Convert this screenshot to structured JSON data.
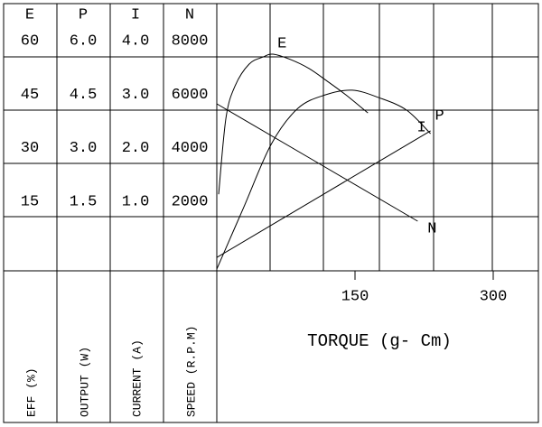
{
  "chart_data": {
    "type": "line",
    "x_label": "TORQUE (g- Cm)",
    "xlim": [
      0,
      350
    ],
    "xticks": [
      150,
      300
    ],
    "color": "#000000",
    "series": [
      {
        "name": "E",
        "axis_label": "EFF (%)",
        "ylim": [
          0,
          75
        ],
        "yticks": [
          15,
          30,
          45,
          60
        ],
        "x": [
          2,
          10,
          20,
          35,
          50,
          61,
          80,
          100,
          120,
          140,
          164
        ],
        "values": [
          21.5,
          43,
          52,
          58,
          60,
          60.8,
          59.3,
          56.8,
          53.2,
          49.4,
          44.3
        ]
      },
      {
        "name": "P",
        "axis_label": "OUTPUT (W)",
        "ylim": [
          0,
          7.5
        ],
        "yticks": [
          1.5,
          {
            "value": 3,
            "label": "3.0"
          },
          4.5,
          {
            "value": 6,
            "label": "6.0"
          }
        ],
        "x": [
          0,
          29,
          59,
          88,
          118,
          147,
          176,
          206,
          232
        ],
        "values": [
          0.05,
          1.77,
          3.55,
          4.56,
          4.94,
          5.07,
          4.86,
          4.51,
          3.85
        ]
      },
      {
        "name": "I",
        "axis_label": "CURRENT (A)",
        "ylim": [
          0,
          5
        ],
        "yticks": [
          {
            "value": 1,
            "label": "1.0"
          },
          {
            "value": 2,
            "label": "2.0"
          },
          {
            "value": 3,
            "label": "3.0"
          },
          {
            "value": 4,
            "label": "4.0"
          }
        ],
        "x": [
          0,
          232
        ],
        "values": [
          0.25,
          2.62
        ]
      },
      {
        "name": "N",
        "axis_label": "SPEED (R.P.M)",
        "ylim": [
          0,
          10000
        ],
        "yticks": [
          2000,
          4000,
          6000,
          8000
        ],
        "x": [
          0,
          218
        ],
        "values": [
          6250,
          1858
        ]
      }
    ]
  }
}
